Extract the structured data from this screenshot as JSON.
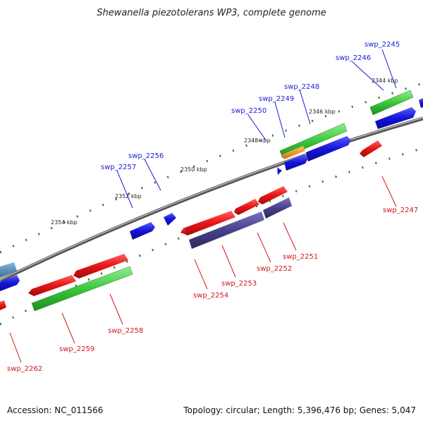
{
  "title": "Shewanella piezotolerans WP3, complete genome",
  "footer": {
    "accession": "Accession: NC_011566",
    "topology": "Topology: circular; Length: 5,396,476 bp; Genes: 5,047"
  },
  "ticks": [
    "2344 kbp",
    "2346 kbp",
    "2348 kbp",
    "2350 kbp",
    "2352 kbp",
    "2354 kbp"
  ],
  "genes_upper": [
    "swp_2245",
    "swp_2246",
    "swp_2248",
    "swp_2249",
    "swp_2250",
    "swp_2256",
    "swp_2257"
  ],
  "genes_lower": [
    "swp_2247",
    "swp_2251",
    "swp_2252",
    "swp_2253",
    "swp_2254",
    "swp_2258",
    "swp_2259",
    "swp_2262"
  ],
  "colors": {
    "backbone": "#777777",
    "forward_cds": "#1414d8",
    "reverse_cds": "#e81414",
    "green_feature": "#3cc83c",
    "purple_feature": "#48418a",
    "orange_feature": "#f09018",
    "tick": "#2a7a2a"
  }
}
